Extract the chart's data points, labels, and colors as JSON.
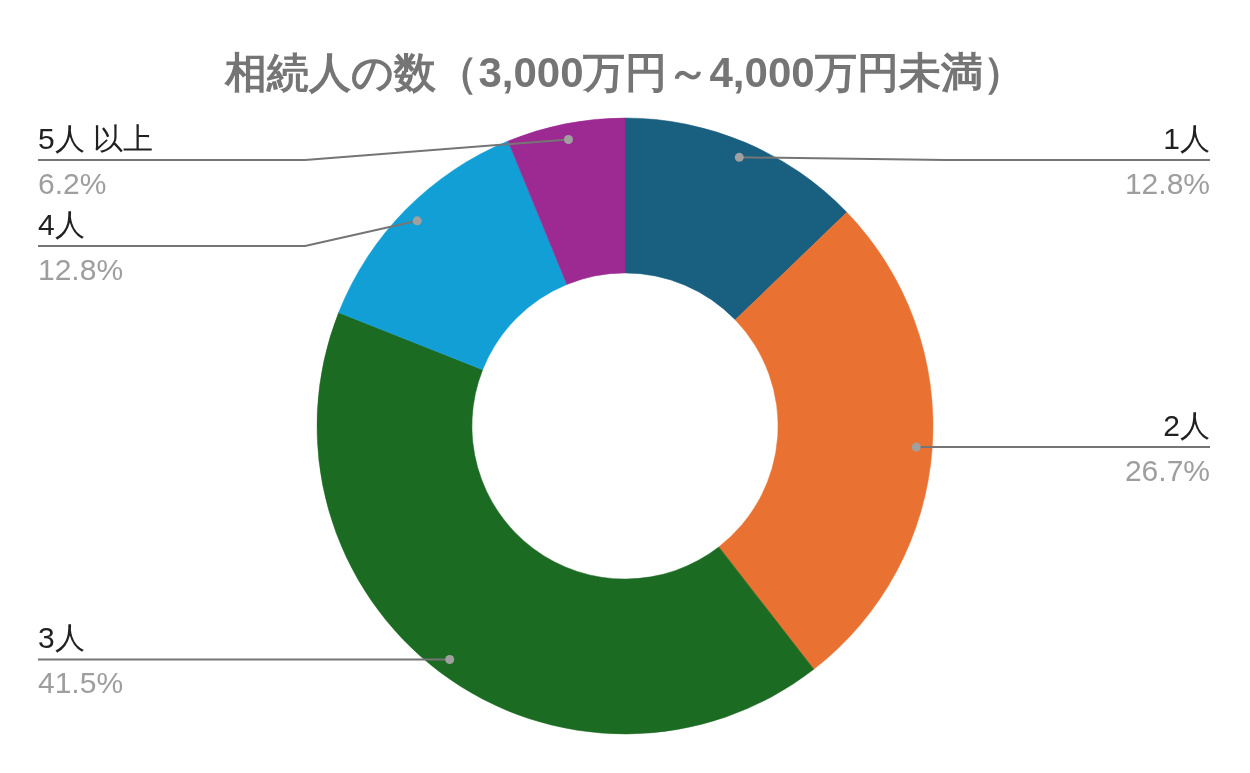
{
  "chart_data": {
    "type": "donut",
    "title": "相続人の数（3,000万円～4,000万円未満）",
    "categories": [
      "1人",
      "2人",
      "3人",
      "4人",
      "5人 以上"
    ],
    "values": [
      12.8,
      26.7,
      41.5,
      12.8,
      6.2
    ],
    "colors": [
      "#185f80",
      "#e97233",
      "#1c6b23",
      "#129fd5",
      "#9c2a92"
    ],
    "value_labels": [
      "12.8%",
      "26.7%",
      "41.5%",
      "12.8%",
      "6.2%"
    ]
  }
}
